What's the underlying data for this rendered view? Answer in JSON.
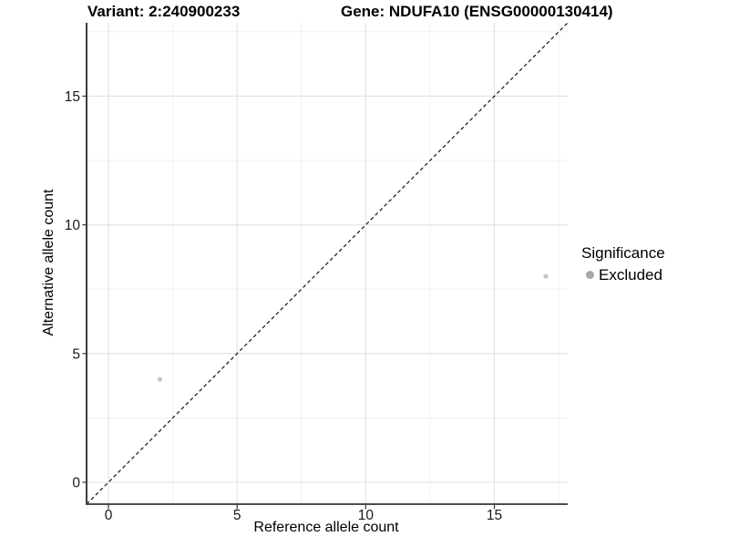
{
  "title": {
    "variant": "Variant: 2:240900233",
    "gene": "Gene: NDUFA10 (ENSG00000130414)"
  },
  "chart_data": {
    "type": "scatter",
    "xlabel": "Reference allele count",
    "ylabel": "Alternative allele count",
    "xlim": [
      -0.85,
      17.85
    ],
    "ylim": [
      -0.85,
      17.85
    ],
    "x_ticks": [
      0,
      5,
      10,
      15
    ],
    "y_ticks": [
      0,
      5,
      10,
      15
    ],
    "x_minor_ticks": [
      2.5,
      7.5,
      12.5,
      17.5
    ],
    "y_minor_ticks": [
      2.5,
      7.5,
      12.5,
      17.5
    ],
    "grid": true,
    "identity_line": {
      "equation": "y = x",
      "style": "dashed",
      "color": "#111111"
    },
    "series": [
      {
        "name": "Excluded",
        "color": "#c5c5c5",
        "points": [
          {
            "x": 2,
            "y": 4
          },
          {
            "x": 17,
            "y": 8
          }
        ]
      }
    ],
    "legend": {
      "title": "Significance",
      "position": "right",
      "entries": [
        {
          "label": "Excluded",
          "color": "#a8a8a8"
        }
      ]
    }
  },
  "colors": {
    "background": "#ffffff",
    "grid_major": "#e2e2e2",
    "grid_minor": "#f0f0f0",
    "axis_line_left": "#0d0d0d",
    "axis_line_bottom": "#4d4d4d",
    "tick_mark": "#333333",
    "tick_label": "#1a1a1a"
  }
}
